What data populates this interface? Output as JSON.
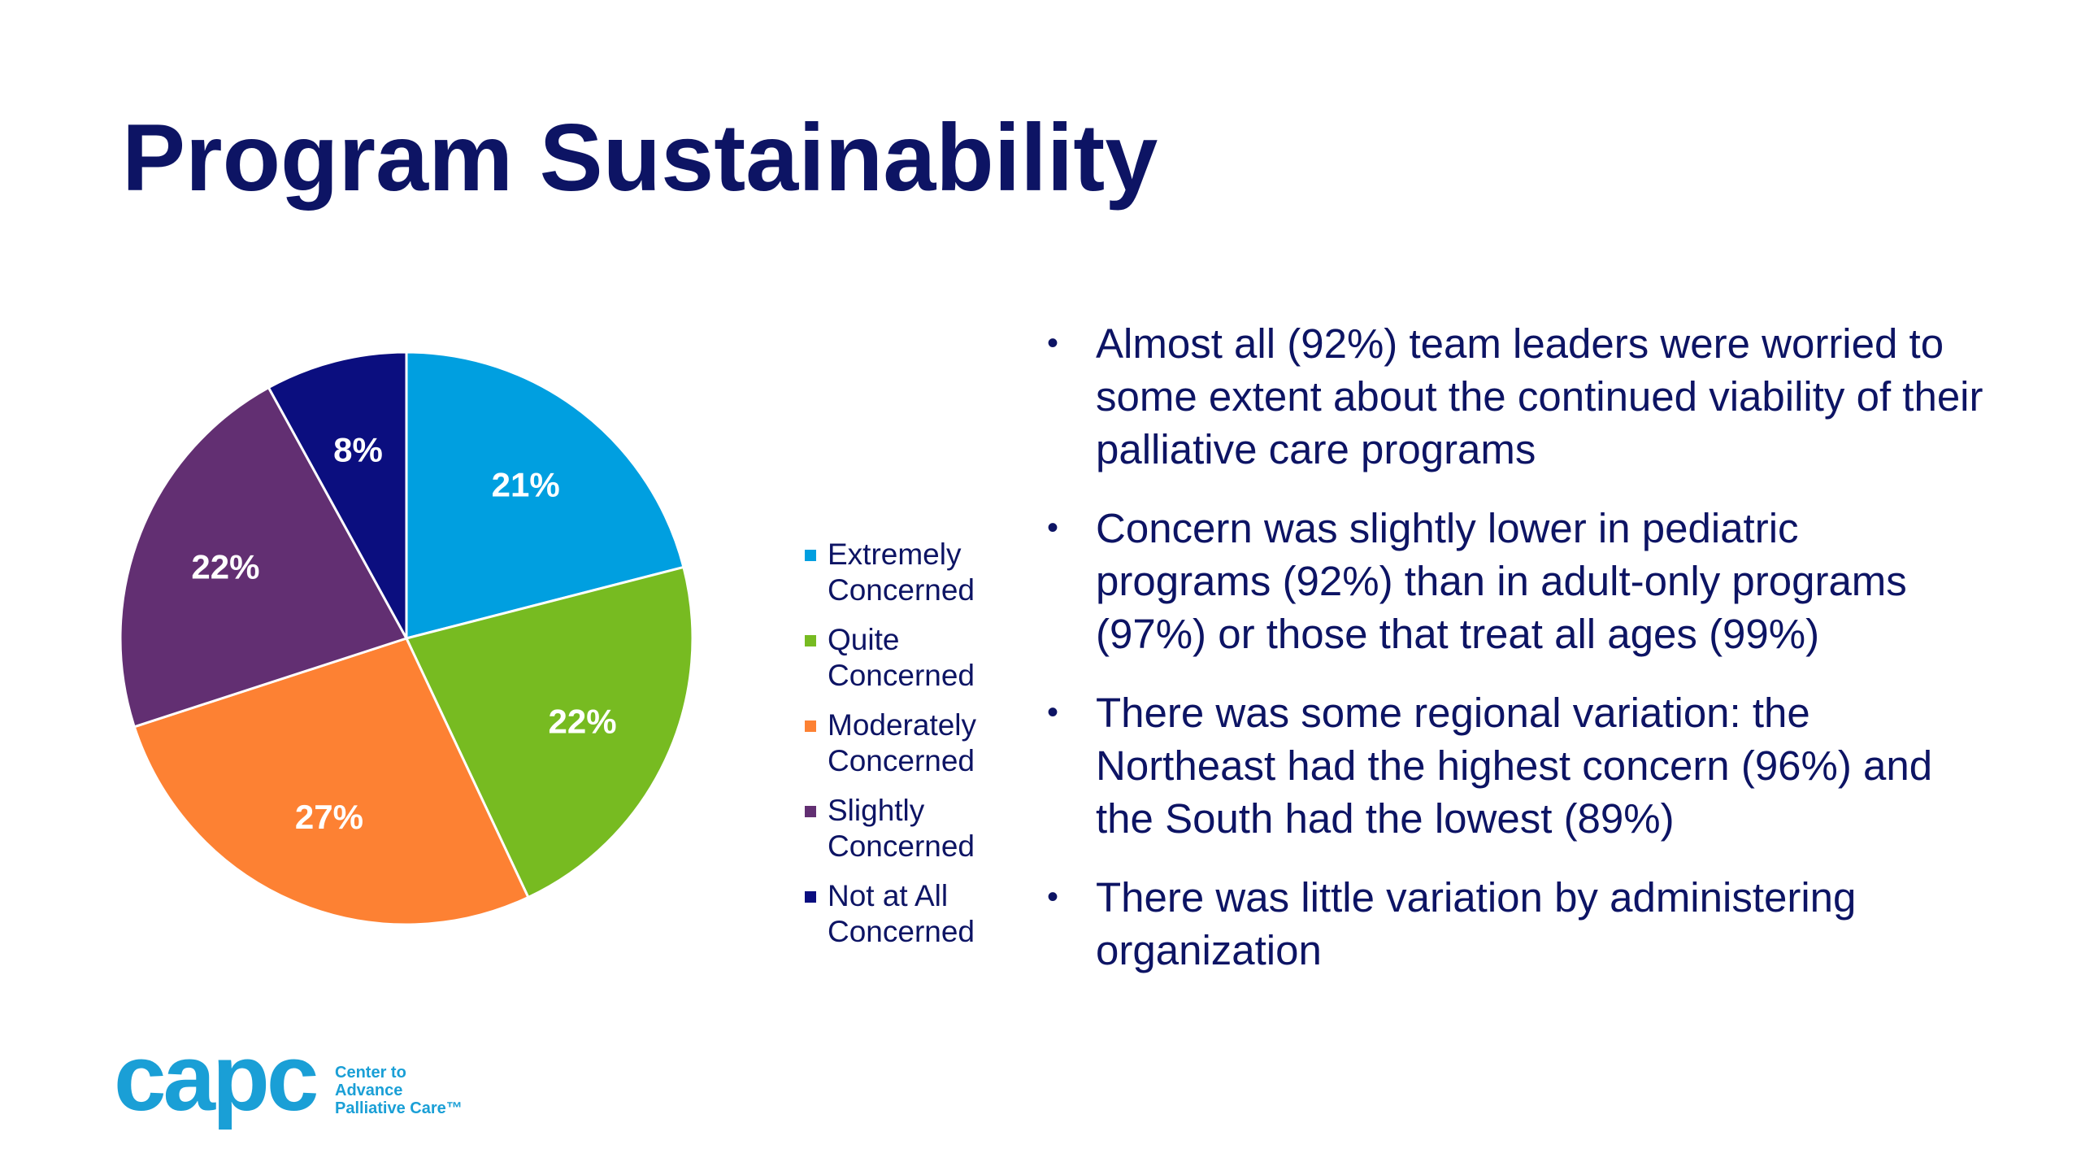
{
  "slide": {
    "title": "Program Sustainability"
  },
  "chart_data": {
    "type": "pie",
    "categories": [
      "Extremely Concerned",
      "Quite Concerned",
      "Moderately Concerned",
      "Slightly Concerned",
      "Not at All Concerned"
    ],
    "values": [
      21,
      22,
      27,
      22,
      8
    ],
    "labels": [
      "21%",
      "22%",
      "27%",
      "22%",
      "8%"
    ],
    "colors": [
      "#009fe0",
      "#77bb21",
      "#fd8133",
      "#622f72",
      "#0b0e7f"
    ],
    "legend_position": "right",
    "start_angle": "12 o'clock",
    "direction": "clockwise"
  },
  "legend": {
    "items": [
      {
        "label": "Extremely Concerned",
        "color": "#009fe0"
      },
      {
        "label": "Quite Concerned",
        "color": "#77bb21"
      },
      {
        "label": "Moderately Concerned",
        "color": "#fd8133"
      },
      {
        "label": "Slightly Concerned",
        "color": "#622f72"
      },
      {
        "label": "Not at All Concerned",
        "color": "#0b0e7f"
      }
    ]
  },
  "bullets": [
    "Almost all (92%) team leaders were worried to some extent about the continued viability of their palliative care programs",
    "Concern was slightly lower in pediatric programs (92%) than in adult-only programs (97%) or those that treat all ages (99%)",
    "There was some regional variation: the Northeast had the highest concern (96%) and the South had the lowest (89%)",
    "There was little variation by administering organization"
  ],
  "bullet_symbol": "•",
  "logo": {
    "word": "capc",
    "tagline": [
      "Center to",
      "Advance",
      "Palliative Care™"
    ],
    "icon": "capc-logo"
  }
}
